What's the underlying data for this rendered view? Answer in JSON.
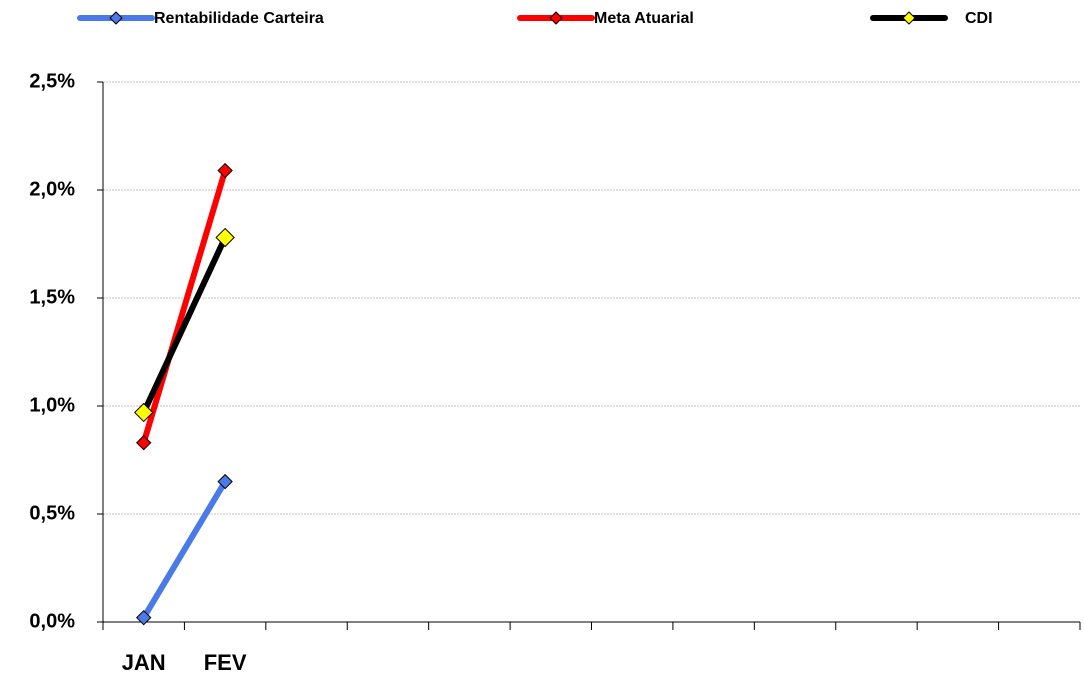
{
  "chart_data": {
    "type": "line",
    "categories": [
      "JAN",
      "FEV",
      null,
      null,
      null,
      null,
      null,
      null,
      null,
      null,
      null,
      null
    ],
    "series": [
      {
        "name": "Rentabilidade Carteira",
        "color": "#4a7ae8",
        "marker_color": "#4a7ae8",
        "values": [
          0.02,
          0.65,
          null,
          null,
          null,
          null,
          null,
          null,
          null,
          null,
          null,
          null
        ]
      },
      {
        "name": "Meta Atuarial",
        "color": "#ff0000",
        "marker_color": "#ff0000",
        "values": [
          0.83,
          2.09,
          null,
          null,
          null,
          null,
          null,
          null,
          null,
          null,
          null,
          null
        ]
      },
      {
        "name": "CDI",
        "color": "#000000",
        "marker_color": "#ffff00",
        "values": [
          0.97,
          1.78,
          null,
          null,
          null,
          null,
          null,
          null,
          null,
          null,
          null,
          null
        ]
      }
    ],
    "ylim": [
      0,
      2.5
    ],
    "yticks": [
      {
        "value": 0,
        "label": "0,0%"
      },
      {
        "value": 0.5,
        "label": "0,5%"
      },
      {
        "value": 1,
        "label": "1,0%"
      },
      {
        "value": 1.5,
        "label": "1,5%"
      },
      {
        "value": 2,
        "label": "2,0%"
      },
      {
        "value": 2.5,
        "label": "2,5%"
      }
    ],
    "grid": true,
    "legend": "top"
  }
}
